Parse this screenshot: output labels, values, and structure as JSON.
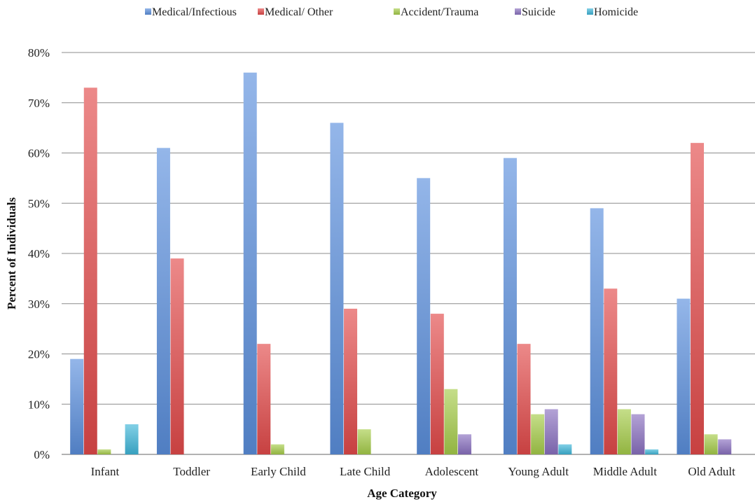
{
  "chart_data": {
    "type": "bar",
    "title": "",
    "xlabel": "Age Category",
    "ylabel": "Percent of Individuals",
    "ylim": [
      0,
      80
    ],
    "y_ticks": [
      "0%",
      "10%",
      "20%",
      "30%",
      "40%",
      "50%",
      "60%",
      "70%",
      "80%"
    ],
    "grid": true,
    "legend_position": "top",
    "categories": [
      "Infant",
      "Toddler",
      "Early Child",
      "Late Child",
      "Adolescent",
      "Young Adult",
      "Middle Adult",
      "Old Adult"
    ],
    "series": [
      {
        "name": "Medical/Infectious",
        "color": "#5b8fdd",
        "values": [
          19,
          61,
          76,
          66,
          55,
          59,
          49,
          31
        ]
      },
      {
        "name": "Medical/ Other",
        "color": "#e24a4a",
        "values": [
          73,
          39,
          22,
          29,
          28,
          22,
          33,
          62
        ]
      },
      {
        "name": "Accident/Trauma",
        "color": "#a6cc4a",
        "values": [
          1,
          0,
          2,
          5,
          13,
          8,
          9,
          4
        ]
      },
      {
        "name": "Suicide",
        "color": "#8a70c0",
        "values": [
          0,
          0,
          0,
          0,
          4,
          9,
          8,
          3
        ]
      },
      {
        "name": "Homicide",
        "color": "#3fb6d9",
        "values": [
          6,
          0,
          0,
          0,
          0,
          2,
          1,
          0
        ]
      }
    ]
  }
}
